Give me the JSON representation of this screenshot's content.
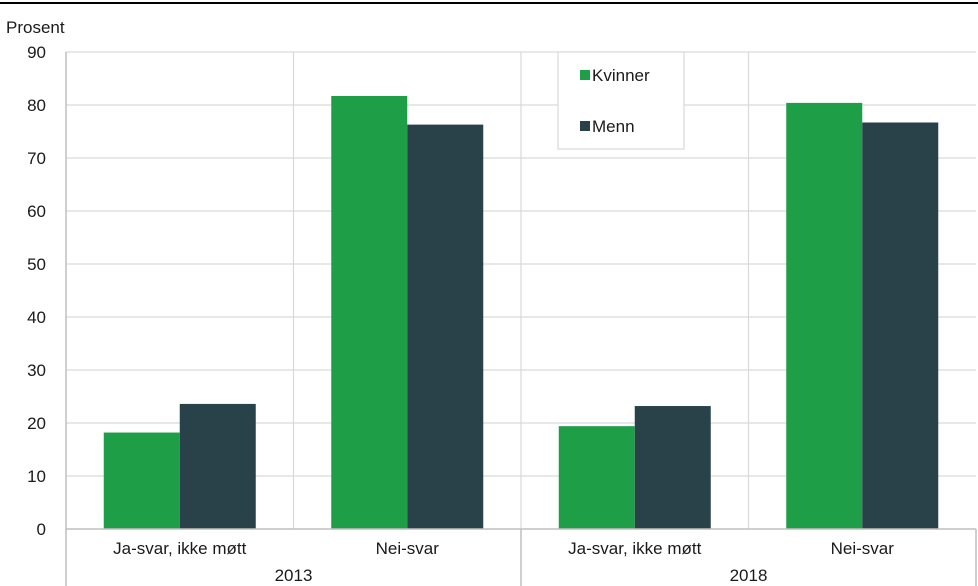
{
  "chart_data": {
    "type": "bar",
    "ylabel": "Prosent",
    "ylim": [
      0,
      90
    ],
    "yticks": [
      0,
      10,
      20,
      30,
      40,
      50,
      60,
      70,
      80,
      90
    ],
    "groups": [
      {
        "label": "2013",
        "categories": [
          "Ja-svar, ikke møtt",
          "Nei-svar"
        ]
      },
      {
        "label": "2018",
        "categories": [
          "Ja-svar, ikke møtt",
          "Nei-svar"
        ]
      }
    ],
    "series": [
      {
        "name": "Kvinner",
        "color": "#1f9e48",
        "values": [
          18.2,
          81.7,
          19.4,
          80.4
        ]
      },
      {
        "name": "Menn",
        "color": "#29424a",
        "values": [
          23.6,
          76.3,
          23.2,
          76.7
        ]
      }
    ],
    "legend": "top-right",
    "grid": true
  }
}
